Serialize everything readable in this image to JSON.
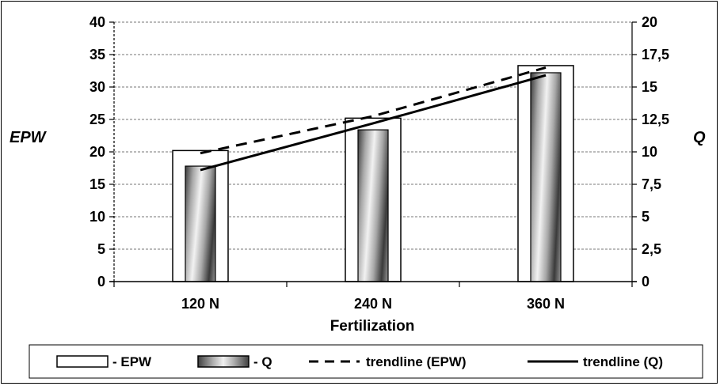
{
  "chart_data": {
    "type": "bar",
    "title": "",
    "categories": [
      "120 N",
      "240 N",
      "360 N"
    ],
    "xlabel": "Fertilization",
    "ylabel": "EPW",
    "y2label": "Q",
    "ylim": [
      0,
      40
    ],
    "y2lim": [
      0,
      20
    ],
    "yticks": [
      "0",
      "5",
      "10",
      "15",
      "20",
      "25",
      "30",
      "35",
      "40"
    ],
    "y2ticks": [
      "0",
      "2,5",
      "5",
      "7,5",
      "10",
      "12,5",
      "15",
      "17,5",
      "20"
    ],
    "grid": "horizontal-dashed",
    "legend_position": "bottom",
    "series": [
      {
        "name": "- EPW",
        "kind": "bar",
        "axis": "left",
        "values": [
          20.2,
          25.2,
          33.3
        ]
      },
      {
        "name": "- Q",
        "kind": "bar",
        "axis": "right",
        "values": [
          8.9,
          11.7,
          16.1
        ]
      },
      {
        "name": "trendline (EPW)",
        "kind": "line",
        "style": "dashed",
        "axis": "left",
        "values": [
          19.8,
          25.5,
          33.0
        ]
      },
      {
        "name": "trendline (Q)",
        "kind": "line",
        "style": "solid",
        "axis": "right",
        "values": [
          8.6,
          12.2,
          15.9
        ]
      }
    ]
  }
}
